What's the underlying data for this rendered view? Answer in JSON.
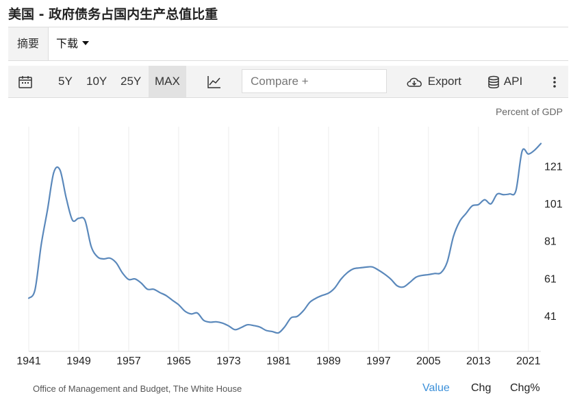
{
  "title": "美国 - 政府债务占国内生产总值比重",
  "tabs": {
    "summary": "摘要",
    "download": "下载"
  },
  "toolbar": {
    "ranges": [
      "5Y",
      "10Y",
      "25Y",
      "MAX"
    ],
    "active_range": "MAX",
    "compare_placeholder": "Compare +",
    "export": "Export",
    "api": "API",
    "icons": {
      "calendar": "calendar-icon",
      "chart_type": "line-chart-icon",
      "export": "cloud-download-icon",
      "api": "database-icon",
      "more": "more-vertical-icon"
    }
  },
  "unit_label": "Percent of GDP",
  "source": "Office of Management and Budget, The White House",
  "footer_tabs": [
    "Value",
    "Chg",
    "Chg%"
  ],
  "active_footer_tab": "Value",
  "colors": {
    "line": "#5a88bb",
    "active_tab": "#3a8fd9"
  },
  "chart_data": {
    "type": "line",
    "title": "美国 - 政府债务占国内生产总值比重",
    "ylabel": "Percent of GDP",
    "x_ticks": [
      1941,
      1949,
      1957,
      1965,
      1973,
      1981,
      1989,
      1997,
      2005,
      2013,
      2021
    ],
    "y_ticks": [
      41,
      61,
      81,
      101,
      121
    ],
    "xlim": [
      1941,
      2023
    ],
    "ylim": [
      22,
      142
    ],
    "grid": {
      "vertical": true,
      "horizontal": false
    },
    "series": [
      {
        "x": [
          1941,
          1942,
          1943,
          1944,
          1945,
          1946,
          1947,
          1948,
          1949,
          1950,
          1951,
          1952,
          1953,
          1954,
          1955,
          1956,
          1957,
          1958,
          1959,
          1960,
          1961,
          1962,
          1963,
          1964,
          1965,
          1966,
          1967,
          1968,
          1969,
          1970,
          1971,
          1972,
          1973,
          1974,
          1975,
          1976,
          1977,
          1978,
          1979,
          1980,
          1981,
          1982,
          1983,
          1984,
          1985,
          1986,
          1987,
          1988,
          1989,
          1990,
          1991,
          1992,
          1993,
          1994,
          1995,
          1996,
          1997,
          1998,
          1999,
          2000,
          2001,
          2002,
          2003,
          2004,
          2005,
          2006,
          2007,
          2008,
          2009,
          2010,
          2011,
          2012,
          2013,
          2014,
          2015,
          2016,
          2017,
          2018,
          2019,
          2020,
          2021,
          2022,
          2023
        ],
        "y": [
          50.4,
          54.9,
          79.1,
          97.6,
          117.5,
          118.9,
          103.9,
          92.1,
          93.1,
          92.0,
          78.0,
          72.5,
          71.4,
          71.8,
          69.3,
          63.9,
          60.4,
          60.7,
          58.5,
          55.2,
          55.2,
          53.4,
          51.8,
          49.3,
          46.9,
          43.5,
          42.0,
          42.5,
          38.6,
          37.6,
          37.8,
          37.1,
          35.6,
          33.6,
          34.7,
          36.2,
          35.8,
          35.0,
          33.2,
          32.6,
          31.9,
          35.2,
          39.9,
          40.7,
          43.8,
          48.2,
          50.4,
          51.9,
          53.1,
          55.9,
          60.6,
          64.0,
          66.1,
          66.6,
          67.0,
          67.1,
          65.4,
          63.2,
          60.5,
          57.0,
          56.4,
          58.8,
          61.6,
          62.6,
          63.0,
          63.6,
          64.0,
          69.7,
          83.4,
          91.4,
          95.6,
          99.7,
          100.4,
          103.0,
          100.8,
          106.0,
          105.7,
          106.1,
          107.8,
          129.0,
          127.4,
          129.5,
          133.0
        ]
      }
    ]
  }
}
